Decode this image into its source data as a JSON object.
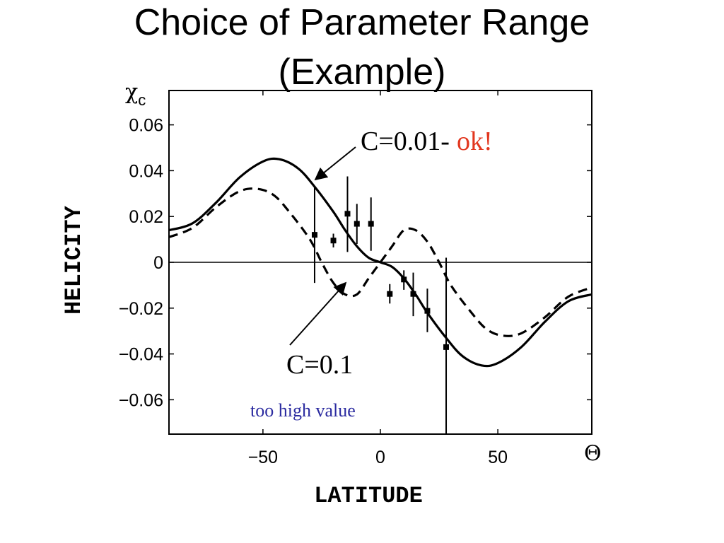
{
  "title_lines": [
    "Choice of Parameter Range",
    "(Example)"
  ],
  "chart_data": {
    "type": "line",
    "title": "Choice of Parameter Range (Example)",
    "xlabel": "LATITUDE",
    "ylabel": "HELICITY",
    "x_symbol": "Θ",
    "y_symbol_main": "χ",
    "y_symbol_sub": "c",
    "xlim": [
      -90,
      90
    ],
    "ylim": [
      -0.075,
      0.075
    ],
    "x_ticks": [
      {
        "value": -50,
        "label": "−50"
      },
      {
        "value": 0,
        "label": "0"
      },
      {
        "value": 50,
        "label": "50"
      }
    ],
    "y_ticks": [
      {
        "value": 0.06,
        "label": "0.06"
      },
      {
        "value": 0.04,
        "label": "0.04"
      },
      {
        "value": 0.02,
        "label": "0.02"
      },
      {
        "value": 0,
        "label": "0"
      },
      {
        "value": -0.02,
        "label": "−0.02"
      },
      {
        "value": -0.04,
        "label": "−0.04"
      },
      {
        "value": -0.06,
        "label": "−0.06"
      }
    ],
    "series": [
      {
        "style": "solid",
        "color": "#000000",
        "x": [
          -90,
          -80,
          -70,
          -60,
          -50,
          -43,
          -35,
          -28,
          -20,
          -15,
          -10,
          -5,
          0,
          5,
          10,
          15,
          20,
          28,
          35,
          43,
          50,
          60,
          70,
          80,
          90
        ],
        "y": [
          0.014,
          0.017,
          0.026,
          0.037,
          0.044,
          0.045,
          0.041,
          0.033,
          0.022,
          0.014,
          0.007,
          0.002,
          0,
          -0.002,
          -0.007,
          -0.014,
          -0.022,
          -0.033,
          -0.041,
          -0.045,
          -0.044,
          -0.037,
          -0.026,
          -0.017,
          -0.014
        ]
      },
      {
        "style": "dashed",
        "color": "#000000",
        "x": [
          -90,
          -80,
          -70,
          -60,
          -52,
          -45,
          -38,
          -30,
          -25,
          -20,
          -15,
          -10,
          -5,
          0,
          5,
          10,
          15,
          20,
          25,
          30,
          38,
          45,
          52,
          60,
          70,
          80,
          90
        ],
        "y": [
          0.011,
          0.015,
          0.024,
          0.031,
          0.032,
          0.029,
          0.021,
          0.01,
          0.0,
          -0.009,
          -0.014,
          -0.014,
          -0.007,
          0,
          0.007,
          0.014,
          0.014,
          0.009,
          0.0,
          -0.01,
          -0.021,
          -0.029,
          -0.032,
          -0.031,
          -0.024,
          -0.015,
          -0.011
        ]
      }
    ],
    "observations": [
      {
        "x": -28,
        "y": 0.012,
        "ylo": -0.009,
        "yhi": 0.033
      },
      {
        "x": -20,
        "y": 0.0095,
        "ylo": 0.0065,
        "yhi": 0.0125
      },
      {
        "x": -14,
        "y": 0.0212,
        "ylo": 0.0045,
        "yhi": 0.0375
      },
      {
        "x": -10,
        "y": 0.0168,
        "ylo": 0.008,
        "yhi": 0.0255
      },
      {
        "x": -4,
        "y": 0.0168,
        "ylo": 0.005,
        "yhi": 0.0283
      },
      {
        "x": 4,
        "y": -0.0138,
        "ylo": -0.018,
        "yhi": -0.0095
      },
      {
        "x": 10,
        "y": -0.0075,
        "ylo": -0.012,
        "yhi": -0.0035
      },
      {
        "x": 14,
        "y": -0.0138,
        "ylo": -0.0235,
        "yhi": -0.0045
      },
      {
        "x": 20,
        "y": -0.0212,
        "ylo": -0.0305,
        "yhi": -0.0115
      },
      {
        "x": 28,
        "y": -0.037,
        "ylo": -0.075,
        "yhi": 0.002
      }
    ],
    "annotations": {
      "c001_prefix": "C=0.01-",
      "c001_ok": "ok!",
      "c01_label": "C=0.1",
      "c01_note": "too high value",
      "ok_color": "#e2371f",
      "note_color": "#2b2ba0"
    }
  }
}
